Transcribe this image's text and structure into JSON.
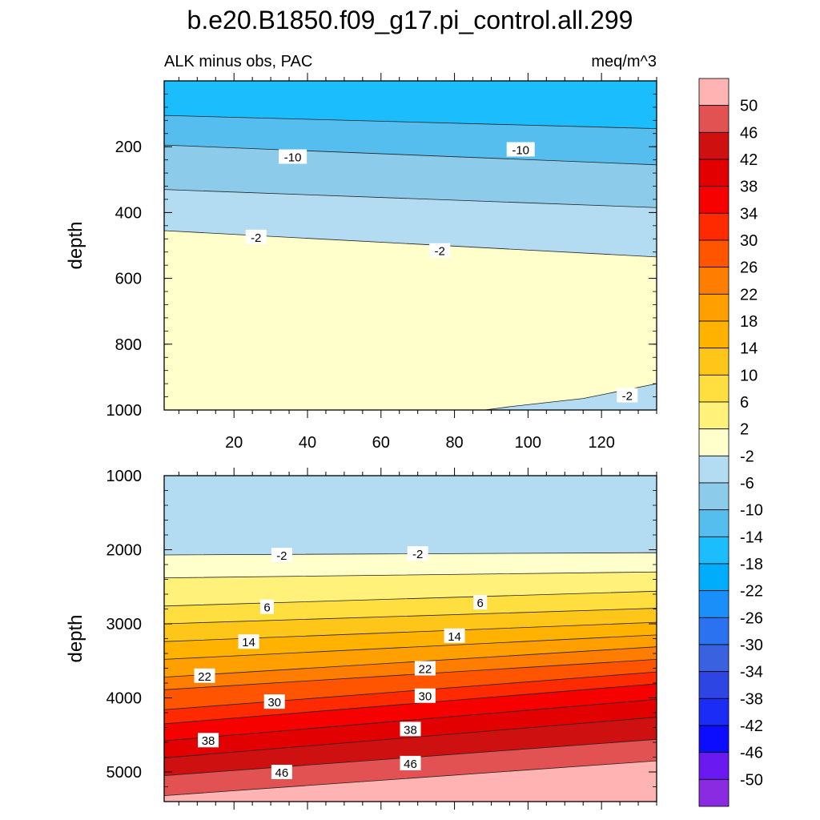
{
  "figure": {
    "title": "b.e20.B1850.f09_g17.pi_control.all.299",
    "subtitle_left": "ALK minus obs, PAC",
    "subtitle_right": "meq/m^3"
  },
  "colorbar": {
    "labels": [
      "50",
      "46",
      "42",
      "38",
      "34",
      "30",
      "26",
      "22",
      "18",
      "14",
      "10",
      "6",
      "2",
      "-2",
      "-6",
      "-10",
      "-14",
      "-18",
      "-22",
      "-26",
      "-30",
      "-34",
      "-38",
      "-42",
      "-46",
      "-50"
    ],
    "colors_top_to_bottom": [
      "#ffb3b3",
      "#e35252",
      "#cf1010",
      "#e30000",
      "#f70000",
      "#ff2a00",
      "#ff5500",
      "#ff7d00",
      "#ff9f00",
      "#ffb300",
      "#ffc61a",
      "#ffdf3f",
      "#fff17a",
      "#ffffcc",
      "#b3dcf2",
      "#8ccbea",
      "#55beef",
      "#1cbdfd",
      "#00adfd",
      "#1a8ffa",
      "#2a72f0",
      "#3a62e0",
      "#2d45e3",
      "#1a2cf5",
      "#0c0cff",
      "#6a1af0",
      "#8a2be2"
    ]
  },
  "chart_data": [
    {
      "type": "contour",
      "name": "upper",
      "ylabel": "depth",
      "xlim": [
        1,
        135
      ],
      "ylim": [
        1000,
        0
      ],
      "xticks": [
        20,
        40,
        60,
        80,
        100,
        120
      ],
      "yticks": [
        200,
        400,
        600,
        800,
        1000
      ],
      "levels": [
        -18,
        -14,
        -10,
        -6,
        -2
      ],
      "bands": [
        {
          "range": "< -14",
          "color": "#1cbdfd",
          "top_depth": [
            0,
            0
          ]
        },
        {
          "range": "-14 to -10",
          "color": "#55beef",
          "top_depth": [
            105,
            145
          ]
        },
        {
          "range": "-10 to -6",
          "color": "#8ccbea",
          "top_depth": [
            195,
            255
          ]
        },
        {
          "range": "-6 to -2",
          "color": "#b3dcf2",
          "top_depth": [
            330,
            385
          ]
        },
        {
          "range": "-2 to 2",
          "color": "#ffffcc",
          "top_depth": [
            455,
            535
          ]
        },
        {
          "range": "-6 to -2",
          "color": "#b3dcf2",
          "region": "bottom-right corner, depth > ~925 for x > 85"
        }
      ],
      "labels": [
        {
          "text": "-10",
          "x": 36,
          "y": 230
        },
        {
          "text": "-10",
          "x": 98,
          "y": 208
        },
        {
          "text": "-2",
          "x": 26,
          "y": 474
        },
        {
          "text": "-2",
          "x": 76,
          "y": 515
        },
        {
          "text": "-2",
          "x": 127,
          "y": 955
        }
      ]
    },
    {
      "type": "contour",
      "name": "lower",
      "ylabel": "depth",
      "xlim": [
        1,
        135
      ],
      "ylim": [
        5400,
        1000
      ],
      "yticks": [
        1000,
        2000,
        3000,
        4000,
        5000
      ],
      "levels": [
        -2,
        2,
        6,
        10,
        14,
        18,
        22,
        26,
        30,
        34,
        38,
        42,
        46,
        50
      ],
      "bands": [
        {
          "range": "-6 to -2",
          "color": "#b3dcf2",
          "top_depth": [
            1000,
            1000
          ]
        },
        {
          "range": "-2 to 2",
          "color": "#ffffcc",
          "top_depth": [
            2070,
            2040
          ]
        },
        {
          "range": "2 to 6",
          "color": "#fff17a",
          "top_depth": [
            2380,
            2300
          ]
        },
        {
          "range": "6 to 10",
          "color": "#ffdf3f",
          "top_depth": [
            2760,
            2560
          ]
        },
        {
          "range": "10 to 14",
          "color": "#ffc61a",
          "top_depth": [
            3000,
            2790
          ]
        },
        {
          "range": "14 to 18",
          "color": "#ffb300",
          "top_depth": [
            3240,
            2980
          ]
        },
        {
          "range": "18 to 22",
          "color": "#ff9f00",
          "top_depth": [
            3480,
            3150
          ]
        },
        {
          "range": "22 to 26",
          "color": "#ff7d00",
          "top_depth": [
            3720,
            3310
          ]
        },
        {
          "range": "26 to 30",
          "color": "#ff5500",
          "top_depth": [
            3890,
            3480
          ]
        },
        {
          "range": "30 to 34",
          "color": "#ff2a00",
          "top_depth": [
            4160,
            3650
          ]
        },
        {
          "range": "34 to 38",
          "color": "#f70000",
          "top_depth": [
            4350,
            3810
          ]
        },
        {
          "range": "38 to 42",
          "color": "#e30000",
          "top_depth": [
            4580,
            4020
          ]
        },
        {
          "range": "42 to 46",
          "color": "#cf1010",
          "top_depth": [
            4810,
            4260
          ]
        },
        {
          "range": "46 to 50",
          "color": "#e35252",
          "top_depth": [
            5050,
            4560
          ]
        },
        {
          "range": "> 50",
          "color": "#ffb3b3",
          "top_depth": [
            5320,
            4850
          ]
        }
      ],
      "labels": [
        {
          "text": "-2",
          "x": 33,
          "y": 2070
        },
        {
          "text": "-2",
          "x": 70,
          "y": 2050
        },
        {
          "text": "6",
          "x": 29,
          "y": 2770
        },
        {
          "text": "6",
          "x": 87,
          "y": 2710
        },
        {
          "text": "14",
          "x": 24,
          "y": 3240
        },
        {
          "text": "14",
          "x": 80,
          "y": 3160
        },
        {
          "text": "22",
          "x": 12,
          "y": 3700
        },
        {
          "text": "22",
          "x": 72,
          "y": 3600
        },
        {
          "text": "30",
          "x": 31,
          "y": 4050
        },
        {
          "text": "30",
          "x": 72,
          "y": 3970
        },
        {
          "text": "38",
          "x": 13,
          "y": 4570
        },
        {
          "text": "38",
          "x": 68,
          "y": 4420
        },
        {
          "text": "46",
          "x": 33,
          "y": 5000
        },
        {
          "text": "46",
          "x": 68,
          "y": 4880
        }
      ]
    }
  ]
}
